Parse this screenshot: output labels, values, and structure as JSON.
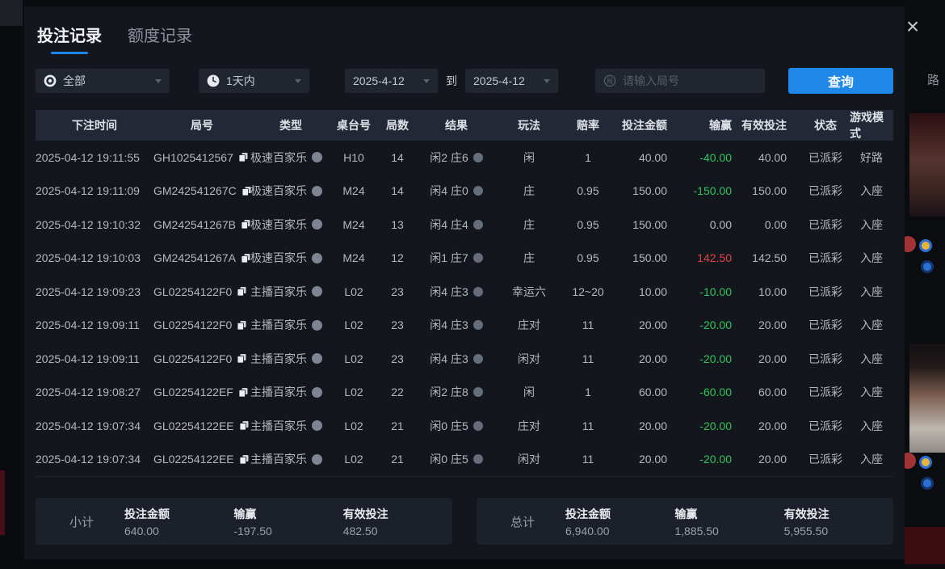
{
  "tabs": [
    {
      "id": "betting",
      "label": "投注记录",
      "active": true
    },
    {
      "id": "quota",
      "label": "额度记录",
      "active": false
    }
  ],
  "close_label": "×",
  "filters": {
    "category": {
      "value": "全部",
      "icon": "chip-icon"
    },
    "range": {
      "value": "1天内",
      "icon": "clock-icon"
    },
    "date_from": "2025-4-12",
    "to_label": "到",
    "date_to": "2025-4-12",
    "search_placeholder": "请输入局号",
    "search_icon_char": "局",
    "query_label": "查询"
  },
  "table": {
    "headers": [
      "下注时间",
      "局号",
      "类型",
      "桌台号",
      "局数",
      "结果",
      "玩法",
      "赔率",
      "投注金额",
      "输赢",
      "有效投注",
      "状态",
      "游戏模式"
    ],
    "rows": [
      {
        "time": "2025-04-12 19:11:55",
        "game_id": "GH1025412567",
        "type": "极速百家乐",
        "table_no": "H10",
        "round": "14",
        "result": "闲2 庄6",
        "play": "闲",
        "odds": "1",
        "bet": "40.00",
        "win_loss": "-40.00",
        "win_loss_color": "green",
        "valid": "40.00",
        "status": "已派彩",
        "mode": "好路"
      },
      {
        "time": "2025-04-12 19:11:09",
        "game_id": "GM242541267C",
        "type": "极速百家乐",
        "table_no": "M24",
        "round": "14",
        "result": "闲4 庄0",
        "play": "庄",
        "odds": "0.95",
        "bet": "150.00",
        "win_loss": "-150.00",
        "win_loss_color": "green",
        "valid": "150.00",
        "status": "已派彩",
        "mode": "入座"
      },
      {
        "time": "2025-04-12 19:10:32",
        "game_id": "GM242541267B",
        "type": "极速百家乐",
        "table_no": "M24",
        "round": "13",
        "result": "闲4 庄4",
        "play": "庄",
        "odds": "0.95",
        "bet": "150.00",
        "win_loss": "0.00",
        "win_loss_color": "neutral",
        "valid": "0.00",
        "status": "已派彩",
        "mode": "入座"
      },
      {
        "time": "2025-04-12 19:10:03",
        "game_id": "GM242541267A",
        "type": "极速百家乐",
        "table_no": "M24",
        "round": "12",
        "result": "闲1 庄7",
        "play": "庄",
        "odds": "0.95",
        "bet": "150.00",
        "win_loss": "142.50",
        "win_loss_color": "red",
        "valid": "142.50",
        "status": "已派彩",
        "mode": "入座"
      },
      {
        "time": "2025-04-12 19:09:23",
        "game_id": "GL02254122F0",
        "type": "主播百家乐",
        "table_no": "L02",
        "round": "23",
        "result": "闲4 庄3",
        "play": "幸运六",
        "odds": "12~20",
        "bet": "10.00",
        "win_loss": "-10.00",
        "win_loss_color": "green",
        "valid": "10.00",
        "status": "已派彩",
        "mode": "入座"
      },
      {
        "time": "2025-04-12 19:09:11",
        "game_id": "GL02254122F0",
        "type": "主播百家乐",
        "table_no": "L02",
        "round": "23",
        "result": "闲4 庄3",
        "play": "庄对",
        "odds": "11",
        "bet": "20.00",
        "win_loss": "-20.00",
        "win_loss_color": "green",
        "valid": "20.00",
        "status": "已派彩",
        "mode": "入座"
      },
      {
        "time": "2025-04-12 19:09:11",
        "game_id": "GL02254122F0",
        "type": "主播百家乐",
        "table_no": "L02",
        "round": "23",
        "result": "闲4 庄3",
        "play": "闲对",
        "odds": "11",
        "bet": "20.00",
        "win_loss": "-20.00",
        "win_loss_color": "green",
        "valid": "20.00",
        "status": "已派彩",
        "mode": "入座"
      },
      {
        "time": "2025-04-12 19:08:27",
        "game_id": "GL02254122EF",
        "type": "主播百家乐",
        "table_no": "L02",
        "round": "22",
        "result": "闲2 庄8",
        "play": "闲",
        "odds": "1",
        "bet": "60.00",
        "win_loss": "-60.00",
        "win_loss_color": "green",
        "valid": "60.00",
        "status": "已派彩",
        "mode": "入座"
      },
      {
        "time": "2025-04-12 19:07:34",
        "game_id": "GL02254122EE",
        "type": "主播百家乐",
        "table_no": "L02",
        "round": "21",
        "result": "闲0 庄5",
        "play": "庄对",
        "odds": "11",
        "bet": "20.00",
        "win_loss": "-20.00",
        "win_loss_color": "green",
        "valid": "20.00",
        "status": "已派彩",
        "mode": "入座"
      },
      {
        "time": "2025-04-12 19:07:34",
        "game_id": "GL02254122EE",
        "type": "主播百家乐",
        "table_no": "L02",
        "round": "21",
        "result": "闲0 庄5",
        "play": "闲对",
        "odds": "11",
        "bet": "20.00",
        "win_loss": "-20.00",
        "win_loss_color": "green",
        "valid": "20.00",
        "status": "已派彩",
        "mode": "入座"
      }
    ]
  },
  "summary": {
    "subtotal": {
      "label": "小计",
      "bet_label": "投注金额",
      "bet": "640.00",
      "win_label": "输赢",
      "win": "-197.50",
      "win_color": "green",
      "valid_label": "有效投注",
      "valid": "482.50"
    },
    "total": {
      "label": "总计",
      "bet_label": "投注金额",
      "bet": "6,940.00",
      "win_label": "输赢",
      "win": "1,885.50",
      "win_color": "red",
      "valid_label": "有效投注",
      "valid": "5,955.50"
    }
  },
  "background": {
    "fragment_text": "路"
  },
  "colors": {
    "accent_blue": "#1e87e8",
    "green": "#2fc55c",
    "red": "#df4444"
  }
}
